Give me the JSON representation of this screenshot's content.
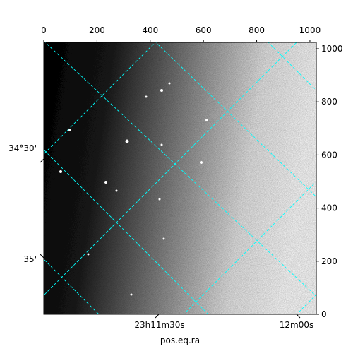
{
  "chart_data": {
    "type": "image",
    "xlabel": "pos.eq.ra",
    "xlim": [
      0,
      1024
    ],
    "ylim": [
      0,
      1024
    ],
    "xticks": [
      0,
      200,
      400,
      600,
      800,
      1000
    ],
    "yticks": [
      0,
      200,
      400,
      600,
      800,
      1000
    ],
    "dec_labels": [
      "34°30'",
      "35'"
    ],
    "ra_labels": [
      "23h11m30s",
      "12m00s"
    ],
    "grid_color": "#00ffff"
  }
}
